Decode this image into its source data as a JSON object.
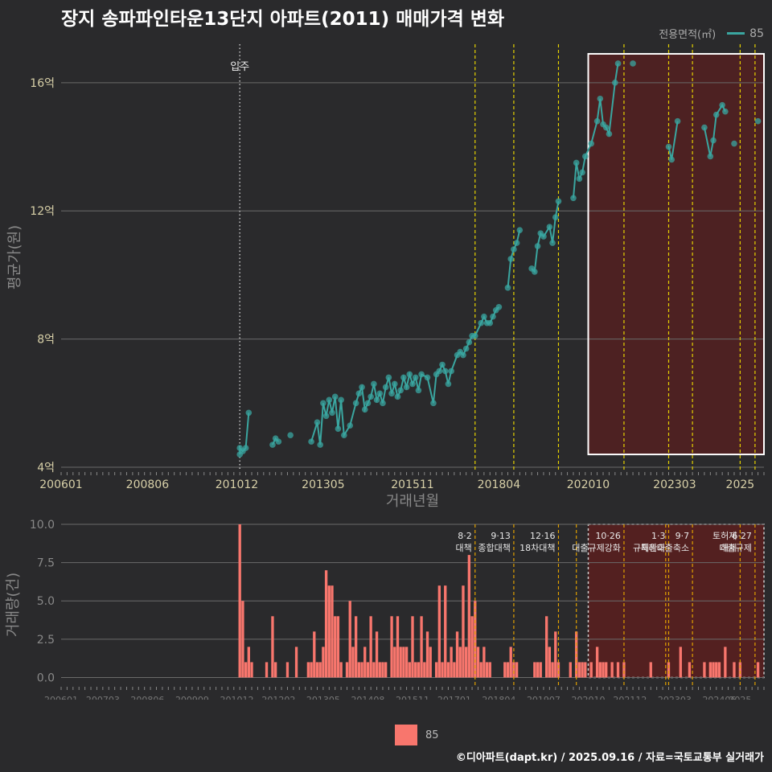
{
  "title": "장지 송파파인타운13단지 아파트(2011) 매매가격 변화",
  "legend": {
    "title": "전용면적(㎡)",
    "value": "85",
    "bar_label": "85"
  },
  "footer": "©디아파트(dapt.kr) / 2025.09.16 / 자료=국토교통부 실거래가",
  "colors": {
    "background": "#2a2a2c",
    "line": "#3aa6a0",
    "bar": "#f8766d",
    "highlight": "#5a1f1f",
    "policy_line": "#e6d200"
  },
  "chart_data": [
    {
      "type": "line",
      "title": "장지 송파파인타운13단지 아파트(2011) 매매가격 변화",
      "xlabel": "거래년월",
      "ylabel": "평균가(원)",
      "x_range": [
        "2006-01",
        "2025-09"
      ],
      "ylim": [
        3.9,
        17.2
      ],
      "x_tick_labels": [
        "200601",
        "200806",
        "201012",
        "201305",
        "201511",
        "201804",
        "202010",
        "202303",
        "2025"
      ],
      "y_tick_labels": [
        "4억",
        "8억",
        "12억",
        "16억"
      ],
      "y_ticks": [
        4,
        8,
        12,
        16
      ],
      "annotation": {
        "label": "입주",
        "date": "2011-01"
      },
      "policy_dates": [
        "2017-08",
        "2018-09",
        "2019-12",
        "2021-10",
        "2023-01",
        "2023-09",
        "2025-01",
        "2025-06"
      ],
      "highlight_box": {
        "x": [
          "2020-10",
          "2025-09"
        ],
        "y": [
          4.4,
          16.9
        ]
      },
      "series": [
        {
          "name": "85",
          "points": [
            [
              "2011-01",
              4.4
            ],
            [
              "2011-01",
              4.6
            ],
            [
              "2011-02",
              4.5
            ],
            [
              "2011-03",
              4.6
            ],
            [
              "2011-04",
              5.7
            ],
            [
              "2011-12",
              4.7
            ],
            [
              "2012-01",
              4.9
            ],
            [
              "2012-02",
              4.8
            ],
            [
              "2012-06",
              5.0
            ],
            [
              "2013-01",
              4.8
            ],
            [
              "2013-03",
              5.4
            ],
            [
              "2013-04",
              4.7
            ],
            [
              "2013-05",
              6.0
            ],
            [
              "2013-06",
              5.6
            ],
            [
              "2013-07",
              6.1
            ],
            [
              "2013-08",
              5.7
            ],
            [
              "2013-09",
              6.2
            ],
            [
              "2013-10",
              5.2
            ],
            [
              "2013-11",
              6.1
            ],
            [
              "2013-12",
              5.0
            ],
            [
              "2014-02",
              5.3
            ],
            [
              "2014-04",
              6.0
            ],
            [
              "2014-05",
              6.3
            ],
            [
              "2014-06",
              6.5
            ],
            [
              "2014-07",
              5.8
            ],
            [
              "2014-08",
              6.0
            ],
            [
              "2014-09",
              6.2
            ],
            [
              "2014-10",
              6.6
            ],
            [
              "2014-11",
              6.1
            ],
            [
              "2014-12",
              6.3
            ],
            [
              "2015-01",
              6.0
            ],
            [
              "2015-02",
              6.5
            ],
            [
              "2015-03",
              6.8
            ],
            [
              "2015-04",
              6.3
            ],
            [
              "2015-05",
              6.6
            ],
            [
              "2015-06",
              6.2
            ],
            [
              "2015-07",
              6.4
            ],
            [
              "2015-08",
              6.8
            ],
            [
              "2015-09",
              6.5
            ],
            [
              "2015-10",
              6.9
            ],
            [
              "2015-11",
              6.6
            ],
            [
              "2015-12",
              6.8
            ],
            [
              "2016-01",
              6.4
            ],
            [
              "2016-02",
              6.9
            ],
            [
              "2016-04",
              6.8
            ],
            [
              "2016-06",
              6.0
            ],
            [
              "2016-07",
              6.9
            ],
            [
              "2016-08",
              7.0
            ],
            [
              "2016-09",
              7.2
            ],
            [
              "2016-10",
              7.0
            ],
            [
              "2016-11",
              6.6
            ],
            [
              "2016-12",
              7.0
            ],
            [
              "2017-02",
              7.5
            ],
            [
              "2017-03",
              7.6
            ],
            [
              "2017-04",
              7.5
            ],
            [
              "2017-05",
              7.7
            ],
            [
              "2017-06",
              7.9
            ],
            [
              "2017-07",
              8.1
            ],
            [
              "2017-08",
              8.1
            ],
            [
              "2017-10",
              8.5
            ],
            [
              "2017-11",
              8.7
            ],
            [
              "2017-12",
              8.5
            ],
            [
              "2018-01",
              8.5
            ],
            [
              "2018-02",
              8.7
            ],
            [
              "2018-03",
              8.9
            ],
            [
              "2018-04",
              9.0
            ],
            [
              "2018-07",
              9.6
            ],
            [
              "2018-08",
              10.5
            ],
            [
              "2018-09",
              10.8
            ],
            [
              "2018-10",
              11.0
            ],
            [
              "2018-11",
              11.4
            ],
            [
              "2019-03",
              10.2
            ],
            [
              "2019-04",
              10.1
            ],
            [
              "2019-05",
              10.9
            ],
            [
              "2019-06",
              11.3
            ],
            [
              "2019-07",
              11.2
            ],
            [
              "2019-09",
              11.5
            ],
            [
              "2019-10",
              11.0
            ],
            [
              "2019-11",
              11.8
            ],
            [
              "2019-12",
              12.3
            ],
            [
              "2020-05",
              12.4
            ],
            [
              "2020-06",
              13.5
            ],
            [
              "2020-07",
              13.0
            ],
            [
              "2020-08",
              13.2
            ],
            [
              "2020-09",
              13.7
            ],
            [
              "2020-11",
              14.1
            ],
            [
              "2021-01",
              14.8
            ],
            [
              "2021-02",
              15.5
            ],
            [
              "2021-03",
              14.7
            ],
            [
              "2021-04",
              14.6
            ],
            [
              "2021-05",
              14.4
            ],
            [
              "2021-07",
              16.0
            ],
            [
              "2021-08",
              16.6
            ],
            [
              "2022-01",
              16.6
            ],
            [
              "2023-01",
              14.0
            ],
            [
              "2023-02",
              13.6
            ],
            [
              "2023-04",
              14.8
            ],
            [
              "2024-01",
              14.6
            ],
            [
              "2024-03",
              13.7
            ],
            [
              "2024-04",
              14.2
            ],
            [
              "2024-05",
              15.0
            ],
            [
              "2024-07",
              15.3
            ],
            [
              "2024-08",
              15.1
            ],
            [
              "2024-11",
              14.1
            ],
            [
              "2025-07",
              14.8
            ]
          ]
        }
      ]
    },
    {
      "type": "bar",
      "xlabel": "",
      "ylabel": "거래량(건)",
      "x_range": [
        "2006-01",
        "2025-09"
      ],
      "ylim": [
        -0.5,
        10
      ],
      "y_tick_labels": [
        "0.0",
        "2.5",
        "5.0",
        "7.5",
        "10.0"
      ],
      "y_ticks": [
        0,
        2.5,
        5,
        7.5,
        10
      ],
      "x_tick_labels": [
        "200601",
        "200703",
        "200806",
        "200909",
        "201012",
        "201202",
        "201305",
        "201408",
        "201511",
        "201701",
        "201804",
        "201907",
        "202010",
        "202112",
        "202303",
        "202406",
        "2025"
      ],
      "policy_events": [
        {
          "date": "2017-08",
          "label": "8·2 대책"
        },
        {
          "date": "2018-09",
          "label": "9·13 종합대책"
        },
        {
          "date": "2019-12",
          "label": "12·16 18차대책"
        },
        {
          "date": "2020-06",
          "label": ""
        },
        {
          "date": "2021-10",
          "label": "10·26 대출규제강화"
        },
        {
          "date": "2022-12",
          "label": ""
        },
        {
          "date": "2023-01",
          "label": "1·3 규제완화"
        },
        {
          "date": "2023-09",
          "label": "9·7 특례대출축소"
        },
        {
          "date": "2025-01",
          "label": "토허제 해제"
        },
        {
          "date": "2025-06",
          "label": "6·27 대출규제"
        }
      ],
      "highlight_box": {
        "x": [
          "2020-10",
          "2025-09"
        ],
        "y": [
          0,
          10
        ]
      },
      "series": [
        {
          "name": "85",
          "bars": [
            [
              "2011-01",
              10
            ],
            [
              "2011-02",
              5
            ],
            [
              "2011-03",
              1
            ],
            [
              "2011-04",
              2
            ],
            [
              "2011-05",
              1
            ],
            [
              "2011-10",
              1
            ],
            [
              "2011-12",
              4
            ],
            [
              "2012-01",
              1
            ],
            [
              "2012-05",
              1
            ],
            [
              "2012-08",
              2
            ],
            [
              "2012-12",
              1
            ],
            [
              "2013-01",
              1
            ],
            [
              "2013-02",
              3
            ],
            [
              "2013-03",
              1
            ],
            [
              "2013-04",
              1
            ],
            [
              "2013-05",
              2
            ],
            [
              "2013-06",
              7
            ],
            [
              "2013-07",
              6
            ],
            [
              "2013-08",
              6
            ],
            [
              "2013-09",
              4
            ],
            [
              "2013-10",
              4
            ],
            [
              "2013-11",
              1
            ],
            [
              "2014-01",
              1
            ],
            [
              "2014-02",
              5
            ],
            [
              "2014-03",
              2
            ],
            [
              "2014-04",
              4
            ],
            [
              "2014-05",
              1
            ],
            [
              "2014-06",
              1
            ],
            [
              "2014-07",
              2
            ],
            [
              "2014-08",
              1
            ],
            [
              "2014-09",
              4
            ],
            [
              "2014-10",
              1
            ],
            [
              "2014-11",
              3
            ],
            [
              "2014-12",
              1
            ],
            [
              "2015-01",
              1
            ],
            [
              "2015-02",
              1
            ],
            [
              "2015-04",
              4
            ],
            [
              "2015-05",
              2
            ],
            [
              "2015-06",
              4
            ],
            [
              "2015-07",
              2
            ],
            [
              "2015-08",
              2
            ],
            [
              "2015-09",
              2
            ],
            [
              "2015-10",
              1
            ],
            [
              "2015-11",
              4
            ],
            [
              "2015-12",
              1
            ],
            [
              "2016-01",
              1
            ],
            [
              "2016-02",
              4
            ],
            [
              "2016-03",
              1
            ],
            [
              "2016-04",
              3
            ],
            [
              "2016-05",
              2
            ],
            [
              "2016-07",
              1
            ],
            [
              "2016-08",
              6
            ],
            [
              "2016-09",
              1
            ],
            [
              "2016-10",
              6
            ],
            [
              "2016-11",
              1
            ],
            [
              "2016-12",
              2
            ],
            [
              "2017-01",
              1
            ],
            [
              "2017-02",
              3
            ],
            [
              "2017-03",
              2
            ],
            [
              "2017-04",
              6
            ],
            [
              "2017-05",
              2
            ],
            [
              "2017-06",
              8
            ],
            [
              "2017-07",
              4
            ],
            [
              "2017-08",
              5
            ],
            [
              "2017-09",
              2
            ],
            [
              "2017-10",
              1
            ],
            [
              "2017-11",
              2
            ],
            [
              "2017-12",
              1
            ],
            [
              "2018-01",
              1
            ],
            [
              "2018-06",
              1
            ],
            [
              "2018-07",
              1
            ],
            [
              "2018-08",
              2
            ],
            [
              "2018-09",
              1
            ],
            [
              "2018-10",
              1
            ],
            [
              "2019-04",
              1
            ],
            [
              "2019-05",
              1
            ],
            [
              "2019-06",
              1
            ],
            [
              "2019-08",
              4
            ],
            [
              "2019-09",
              2
            ],
            [
              "2019-10",
              1
            ],
            [
              "2019-11",
              3
            ],
            [
              "2019-12",
              1
            ],
            [
              "2020-04",
              1
            ],
            [
              "2020-06",
              3
            ],
            [
              "2020-07",
              1
            ],
            [
              "2020-08",
              1
            ],
            [
              "2020-09",
              1
            ],
            [
              "2020-11",
              1
            ],
            [
              "2021-01",
              2
            ],
            [
              "2021-02",
              1
            ],
            [
              "2021-03",
              1
            ],
            [
              "2021-04",
              1
            ],
            [
              "2021-06",
              1
            ],
            [
              "2021-08",
              1
            ],
            [
              "2021-10",
              1
            ],
            [
              "2022-07",
              1
            ],
            [
              "2023-01",
              1
            ],
            [
              "2023-05",
              2
            ],
            [
              "2023-08",
              1
            ],
            [
              "2024-01",
              1
            ],
            [
              "2024-03",
              1
            ],
            [
              "2024-04",
              1
            ],
            [
              "2024-05",
              1
            ],
            [
              "2024-06",
              1
            ],
            [
              "2024-08",
              2
            ],
            [
              "2024-11",
              1
            ],
            [
              "2025-01",
              1
            ],
            [
              "2025-07",
              1
            ]
          ]
        }
      ]
    }
  ]
}
